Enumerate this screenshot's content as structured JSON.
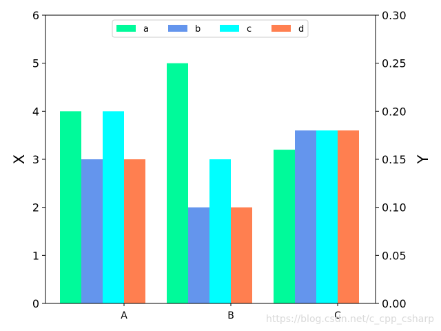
{
  "chart_data": {
    "type": "bar",
    "categories": [
      "A",
      "B",
      "C"
    ],
    "series": [
      {
        "name": "a",
        "values": [
          4,
          5,
          3.2
        ],
        "color": "#00fa9a",
        "axis": "left"
      },
      {
        "name": "b",
        "values": [
          3,
          2,
          3.6
        ],
        "color": "#6495ed",
        "axis": "left"
      },
      {
        "name": "c",
        "values": [
          4,
          3,
          3.6
        ],
        "color": "#00ffff",
        "axis": "left"
      },
      {
        "name": "d",
        "values": [
          3,
          2,
          3.6
        ],
        "color": "#ff7f50",
        "axis": "left"
      }
    ],
    "ylabel_left": "X",
    "ylim_left": [
      0,
      6
    ],
    "yticks_left": [
      "0",
      "1",
      "2",
      "3",
      "4",
      "5",
      "6"
    ],
    "ylabel_right": "Y",
    "ylim_right": [
      0,
      0.3
    ],
    "yticks_right": [
      "0.00",
      "0.05",
      "0.10",
      "0.15",
      "0.20",
      "0.25",
      "0.30"
    ],
    "legend_position": "top-center",
    "grid": false
  },
  "watermark": "https://blog.csdn.net/c_cpp_csharp"
}
